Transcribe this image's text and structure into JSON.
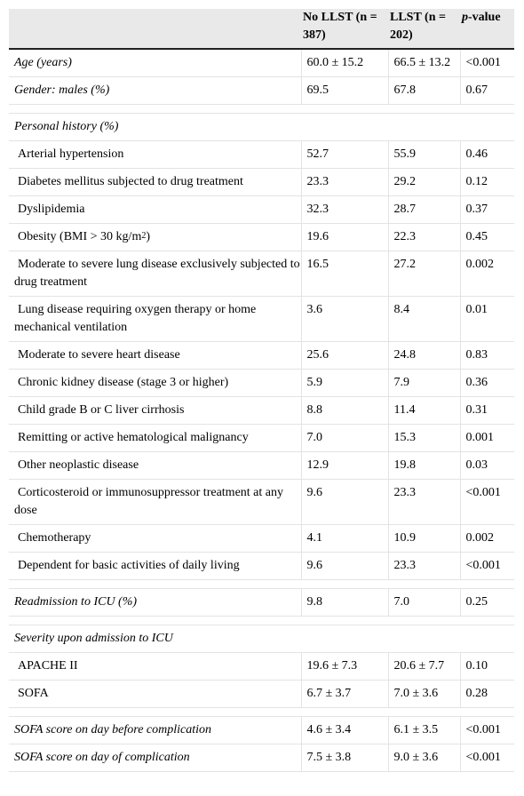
{
  "header": {
    "col_label": "",
    "col_no_llst": "No LLST (n = 387)",
    "col_llst": "LLST (n = 202)",
    "col_p_prefix": "p",
    "col_p_suffix": "-value"
  },
  "rows": {
    "age": {
      "label": "Age (years)",
      "no_llst": "60.0 ± 15.2",
      "llst": "66.5 ± 13.2",
      "p": "<0.001"
    },
    "gender": {
      "label": "Gender: males (%)",
      "no_llst": "69.5",
      "llst": "67.8",
      "p": "0.67"
    },
    "personal_history": {
      "label": "Personal history (%)"
    },
    "hypertension": {
      "label": "Arterial hypertension",
      "no_llst": "52.7",
      "llst": "55.9",
      "p": "0.46"
    },
    "diabetes": {
      "label": "Diabetes mellitus subjected to drug treatment",
      "no_llst": "23.3",
      "llst": "29.2",
      "p": "0.12"
    },
    "dyslipidemia": {
      "label": "Dyslipidemia",
      "no_llst": "32.3",
      "llst": "28.7",
      "p": "0.37"
    },
    "obesity": {
      "label_pre": "Obesity (BMI > 30 kg/m",
      "label_sup": "2",
      "label_post": ")",
      "no_llst": "19.6",
      "llst": "22.3",
      "p": "0.45"
    },
    "lung_mod": {
      "label": "Moderate to severe lung disease exclusively subjected to drug treatment",
      "no_llst": "16.5",
      "llst": "27.2",
      "p": "0.002"
    },
    "lung_oxygen": {
      "label": "Lung disease requiring oxygen therapy or home mechanical ventilation",
      "no_llst": "3.6",
      "llst": "8.4",
      "p": "0.01"
    },
    "heart": {
      "label": "Moderate to severe heart disease",
      "no_llst": "25.6",
      "llst": "24.8",
      "p": "0.83"
    },
    "kidney": {
      "label": "Chronic kidney disease (stage 3 or higher)",
      "no_llst": "5.9",
      "llst": "7.9",
      "p": "0.36"
    },
    "liver": {
      "label": "Child grade B or C liver cirrhosis",
      "no_llst": "8.8",
      "llst": "11.4",
      "p": "0.31"
    },
    "hemato": {
      "label": "Remitting or active hematological malignancy",
      "no_llst": "7.0",
      "llst": "15.3",
      "p": "0.001"
    },
    "neoplastic": {
      "label": "Other neoplastic disease",
      "no_llst": "12.9",
      "llst": "19.8",
      "p": "0.03"
    },
    "cortico": {
      "label": "Corticosteroid or immunosuppressor treatment at any dose",
      "no_llst": "9.6",
      "llst": "23.3",
      "p": "<0.001"
    },
    "chemo": {
      "label": "Chemotherapy",
      "no_llst": "4.1",
      "llst": "10.9",
      "p": "0.002"
    },
    "dependent": {
      "label": "Dependent for basic activities of daily living",
      "no_llst": "9.6",
      "llst": "23.3",
      "p": "<0.001"
    },
    "readmission": {
      "label": "Readmission to ICU (%)",
      "no_llst": "9.8",
      "llst": "7.0",
      "p": "0.25"
    },
    "severity": {
      "label": "Severity upon admission to ICU"
    },
    "apache": {
      "label": "APACHE II",
      "no_llst": "19.6 ± 7.3",
      "llst": "20.6 ± 7.7",
      "p": "0.10"
    },
    "sofa": {
      "label": "SOFA",
      "no_llst": "6.7 ± 3.7",
      "llst": "7.0 ± 3.6",
      "p": "0.28"
    },
    "sofa_before": {
      "label": "SOFA score on day before complication",
      "no_llst": "4.6 ± 3.4",
      "llst": "6.1 ± 3.5",
      "p": "<0.001"
    },
    "sofa_day": {
      "label": "SOFA score on day of complication",
      "no_llst": "7.5 ± 3.8",
      "llst": "9.0 ± 3.6",
      "p": "<0.001"
    }
  }
}
